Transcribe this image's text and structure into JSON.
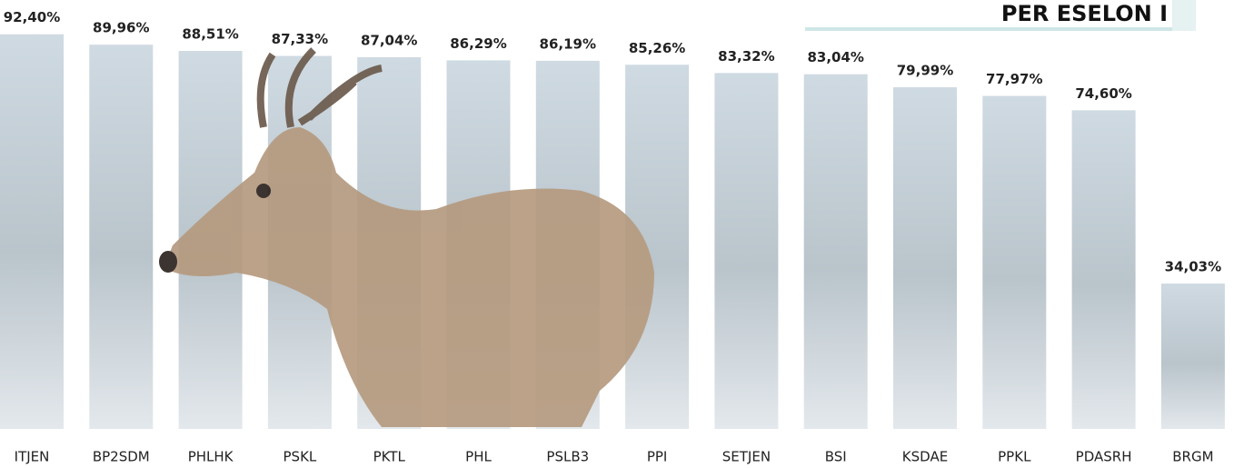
{
  "chart_data": {
    "type": "bar",
    "title": "PER ESELON I",
    "categories": [
      "ITJEN",
      "BP2SDM",
      "PHLHK",
      "PSKL",
      "PKTL",
      "PHL",
      "PSLB3",
      "PPI",
      "SETJEN",
      "BSI",
      "KSDAE",
      "PPKL",
      "PDASRH",
      "BRGM"
    ],
    "values": [
      92.4,
      89.96,
      88.51,
      87.33,
      87.04,
      86.29,
      86.19,
      85.26,
      83.32,
      83.04,
      79.99,
      77.97,
      74.6,
      34.03
    ],
    "value_labels": [
      "92,40%",
      "89,96%",
      "88,51%",
      "87,33%",
      "87,04%",
      "86,29%",
      "86,19%",
      "85,26%",
      "83,32%",
      "83,04%",
      "79,99%",
      "77,97%",
      "74,60%",
      "34,03%"
    ],
    "color": "#c9d4dc"
  }
}
